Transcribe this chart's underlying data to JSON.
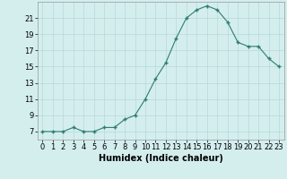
{
  "x": [
    0,
    1,
    2,
    3,
    4,
    5,
    6,
    7,
    8,
    9,
    10,
    11,
    12,
    13,
    14,
    15,
    16,
    17,
    18,
    19,
    20,
    21,
    22,
    23
  ],
  "y": [
    7,
    7,
    7,
    7.5,
    7,
    7,
    7.5,
    7.5,
    8.5,
    9,
    11,
    13.5,
    15.5,
    18.5,
    21,
    22,
    22.5,
    22,
    20.5,
    18,
    17.5,
    17.5,
    16,
    15
  ],
  "line_color": "#2e7d6e",
  "marker_color": "#2e7d6e",
  "bg_color": "#d4eeee",
  "grid_color": "#b8d8d8",
  "xlabel": "Humidex (Indice chaleur)",
  "xlabel_fontsize": 7,
  "tick_fontsize": 6,
  "xlim": [
    -0.5,
    23.5
  ],
  "ylim": [
    6,
    23
  ],
  "yticks": [
    7,
    9,
    11,
    13,
    15,
    17,
    19,
    21
  ],
  "xticks": [
    0,
    1,
    2,
    3,
    4,
    5,
    6,
    7,
    8,
    9,
    10,
    11,
    12,
    13,
    14,
    15,
    16,
    17,
    18,
    19,
    20,
    21,
    22,
    23
  ]
}
